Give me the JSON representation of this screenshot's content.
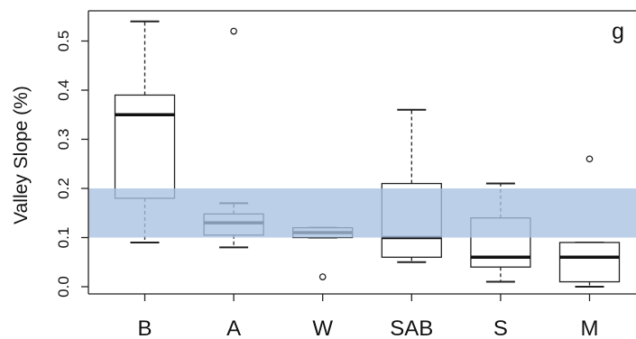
{
  "chart_data": {
    "type": "box",
    "title": "",
    "ylabel": "Valley Slope (%)",
    "xlabel": "",
    "panel_label": "g",
    "ylim": [
      -0.01,
      0.54
    ],
    "yticks": [
      0.0,
      0.1,
      0.2,
      0.3,
      0.4,
      0.5
    ],
    "ytick_labels": [
      "0.0",
      "0.1",
      "0.2",
      "0.3",
      "0.4",
      "0.5"
    ],
    "categories": [
      "B",
      "A",
      "W",
      "SAB",
      "S",
      "M"
    ],
    "boxes": [
      {
        "category": "B",
        "whisker_low": 0.09,
        "q1": 0.18,
        "median": 0.35,
        "q3": 0.39,
        "whisker_high": 0.54,
        "outliers": []
      },
      {
        "category": "A",
        "whisker_low": 0.08,
        "q1": 0.105,
        "median": 0.13,
        "q3": 0.148,
        "whisker_high": 0.17,
        "outliers": [
          0.52
        ]
      },
      {
        "category": "W",
        "whisker_low": 0.1,
        "q1": 0.1,
        "median": 0.11,
        "q3": 0.12,
        "whisker_high": 0.12,
        "outliers": [
          0.02
        ]
      },
      {
        "category": "SAB",
        "whisker_low": 0.05,
        "q1": 0.06,
        "median": 0.1,
        "q3": 0.21,
        "whisker_high": 0.36,
        "outliers": []
      },
      {
        "category": "S",
        "whisker_low": 0.01,
        "q1": 0.04,
        "median": 0.06,
        "q3": 0.14,
        "whisker_high": 0.21,
        "outliers": []
      },
      {
        "category": "M",
        "whisker_low": 0.0,
        "q1": 0.01,
        "median": 0.06,
        "q3": 0.09,
        "whisker_high": 0.09,
        "outliers": [
          0.26
        ]
      }
    ],
    "reference_band": {
      "low": 0.1,
      "high": 0.2,
      "color": "#a9c1e2"
    },
    "grid": false
  }
}
